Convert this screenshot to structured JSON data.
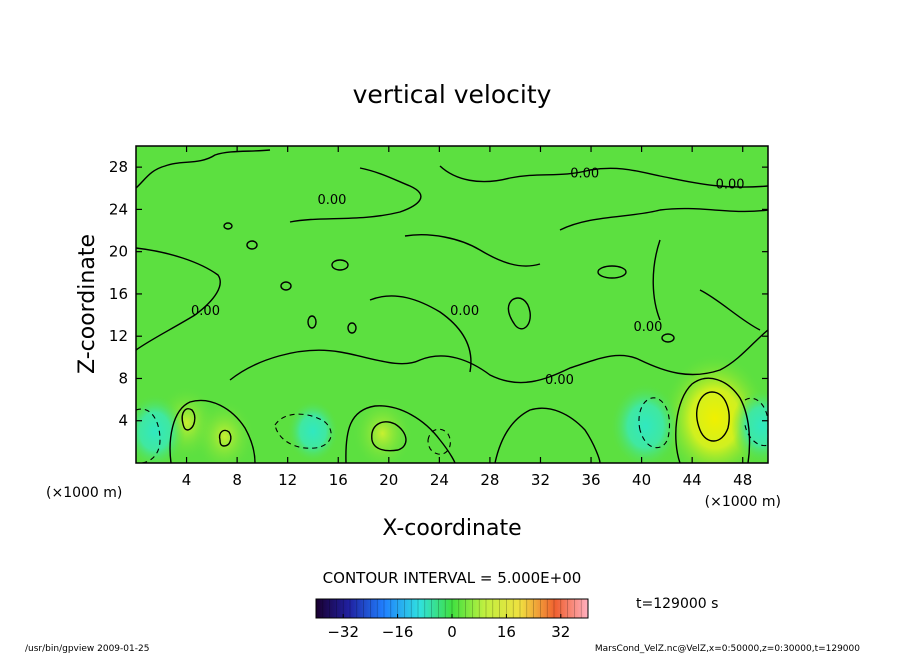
{
  "chart_data": {
    "type": "heatmap",
    "title": "vertical velocity",
    "xlabel": "X-coordinate",
    "ylabel": "Z-coordinate",
    "x_unit_left": "(×1000 m)",
    "x_unit_right": "(×1000 m)",
    "xlim": [
      0,
      50
    ],
    "ylim": [
      0,
      30
    ],
    "xticks": [
      4,
      8,
      12,
      16,
      20,
      24,
      28,
      32,
      36,
      40,
      44,
      48
    ],
    "yticks": [
      4,
      8,
      12,
      16,
      20,
      24,
      28
    ],
    "contour_interval_text": "CONTOUR INTERVAL = 5.000E+00",
    "time_text": "t=129000 s",
    "contour_labels": [
      {
        "text": "0.00",
        "x": 5.5,
        "z": 14.0
      },
      {
        "text": "0.00",
        "x": 15.5,
        "z": 24.5
      },
      {
        "text": "0.00",
        "x": 35.5,
        "z": 27.0
      },
      {
        "text": "0.00",
        "x": 47.0,
        "z": 26.0
      },
      {
        "text": "0.00",
        "x": 26.0,
        "z": 14.0
      },
      {
        "text": "0.00",
        "x": 40.5,
        "z": 12.5
      },
      {
        "text": "0.00",
        "x": 33.5,
        "z": 7.5
      }
    ],
    "features": [
      {
        "type": "positive-max",
        "x": 45.8,
        "z": 4.2,
        "value": 20
      },
      {
        "type": "positive",
        "x": 4.0,
        "z": 3.8,
        "value": 10
      },
      {
        "type": "positive",
        "x": 7.0,
        "z": 2.5,
        "value": 10
      },
      {
        "type": "positive",
        "x": 19.5,
        "z": 2.8,
        "value": 10
      },
      {
        "type": "negative",
        "x": 1.5,
        "z": 3.0,
        "value": -10
      },
      {
        "type": "negative",
        "x": 14.0,
        "z": 3.0,
        "value": -8
      },
      {
        "type": "negative",
        "x": 40.3,
        "z": 3.5,
        "value": -12
      },
      {
        "type": "negative",
        "x": 49.5,
        "z": 3.5,
        "value": -10
      }
    ],
    "colorbar": {
      "min": -40,
      "max": 40,
      "ticks": [
        -32,
        -16,
        0,
        16,
        32
      ]
    }
  },
  "footer": {
    "left": "/usr/bin/gpview   2009-01-25",
    "right": "MarsCond_VelZ.nc@VelZ,x=0:50000,z=0:30000,t=129000"
  }
}
